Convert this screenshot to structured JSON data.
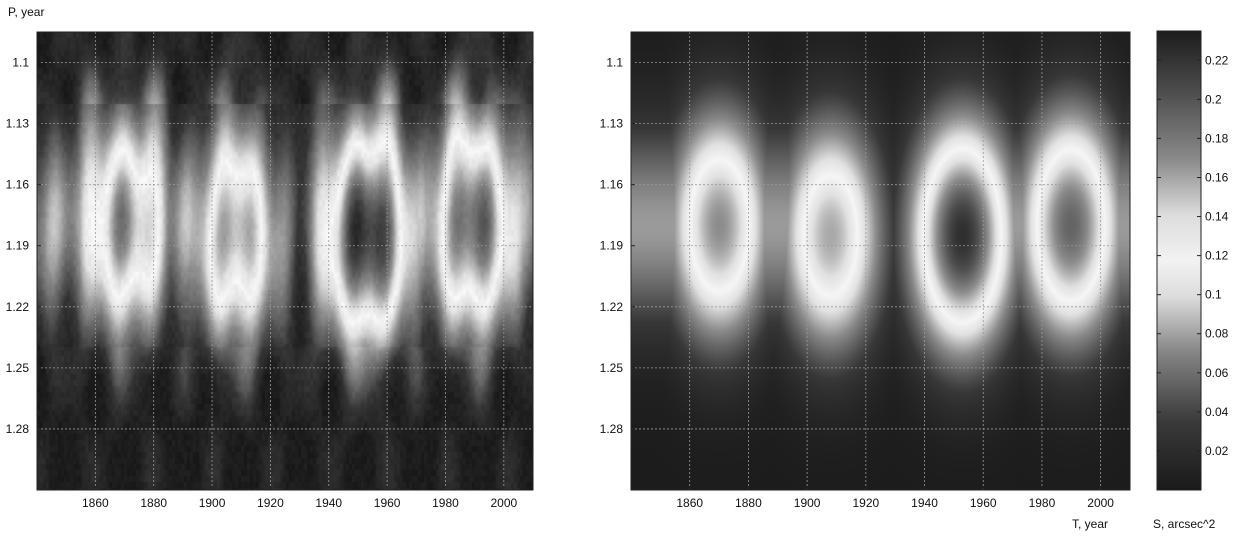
{
  "chart_data": [
    {
      "type": "heatmap",
      "ylabel": "P, year",
      "xlabel": "",
      "x_ticks": [
        1860,
        1880,
        1900,
        1920,
        1940,
        1960,
        1980,
        2000
      ],
      "y_ticks": [
        1.1,
        1.13,
        1.16,
        1.19,
        1.22,
        1.25,
        1.28
      ],
      "y_tick_labels": [
        "1.1",
        "1.13",
        "1.16",
        "1.19",
        "1.22",
        "1.25",
        "1.28"
      ],
      "xlim": [
        1840,
        2010
      ],
      "ylim": [
        1.085,
        1.31
      ],
      "y_inverted": true,
      "grid": true,
      "colormap": "gray",
      "value_range": [
        0,
        0.23
      ],
      "ridge_period": 1.18,
      "features": [
        {
          "center_year": 1870,
          "center_period": 1.18,
          "value": 0.17
        },
        {
          "center_year": 1908,
          "center_period": 1.185,
          "value": 0.16
        },
        {
          "center_year": 1953,
          "center_period": 1.185,
          "value": 0.22
        },
        {
          "center_year": 1990,
          "center_period": 1.18,
          "value": 0.19
        }
      ]
    },
    {
      "type": "heatmap",
      "ylabel": "",
      "xlabel": "T, year",
      "x_ticks": [
        1860,
        1880,
        1900,
        1920,
        1940,
        1960,
        1980,
        2000
      ],
      "y_ticks": [
        1.1,
        1.13,
        1.16,
        1.19,
        1.22,
        1.25,
        1.28
      ],
      "y_tick_labels": [
        "1.1",
        "1.13",
        "1.16",
        "1.19",
        "1.22",
        "1.25",
        "1.28"
      ],
      "xlim": [
        1840,
        2010
      ],
      "ylim": [
        1.085,
        1.31
      ],
      "y_inverted": true,
      "grid": true,
      "colormap": "gray",
      "value_range": [
        0,
        0.23
      ],
      "ridge_period": 1.18,
      "features": [
        {
          "center_year": 1870,
          "center_period": 1.18,
          "value": 0.17
        },
        {
          "center_year": 1908,
          "center_period": 1.185,
          "value": 0.16
        },
        {
          "center_year": 1953,
          "center_period": 1.185,
          "value": 0.22
        },
        {
          "center_year": 1990,
          "center_period": 1.18,
          "value": 0.19
        }
      ]
    }
  ],
  "colorbar": {
    "label": "S, arcsec^2",
    "range": [
      0,
      0.235
    ],
    "ticks": [
      0.02,
      0.04,
      0.06,
      0.08,
      0.1,
      0.12,
      0.14,
      0.16,
      0.18,
      0.2,
      0.22
    ],
    "tick_labels": [
      "0.02",
      "0.04",
      "0.06",
      "0.08",
      "0.1",
      "0.12",
      "0.14",
      "0.16",
      "0.18",
      "0.2",
      "0.22"
    ]
  }
}
